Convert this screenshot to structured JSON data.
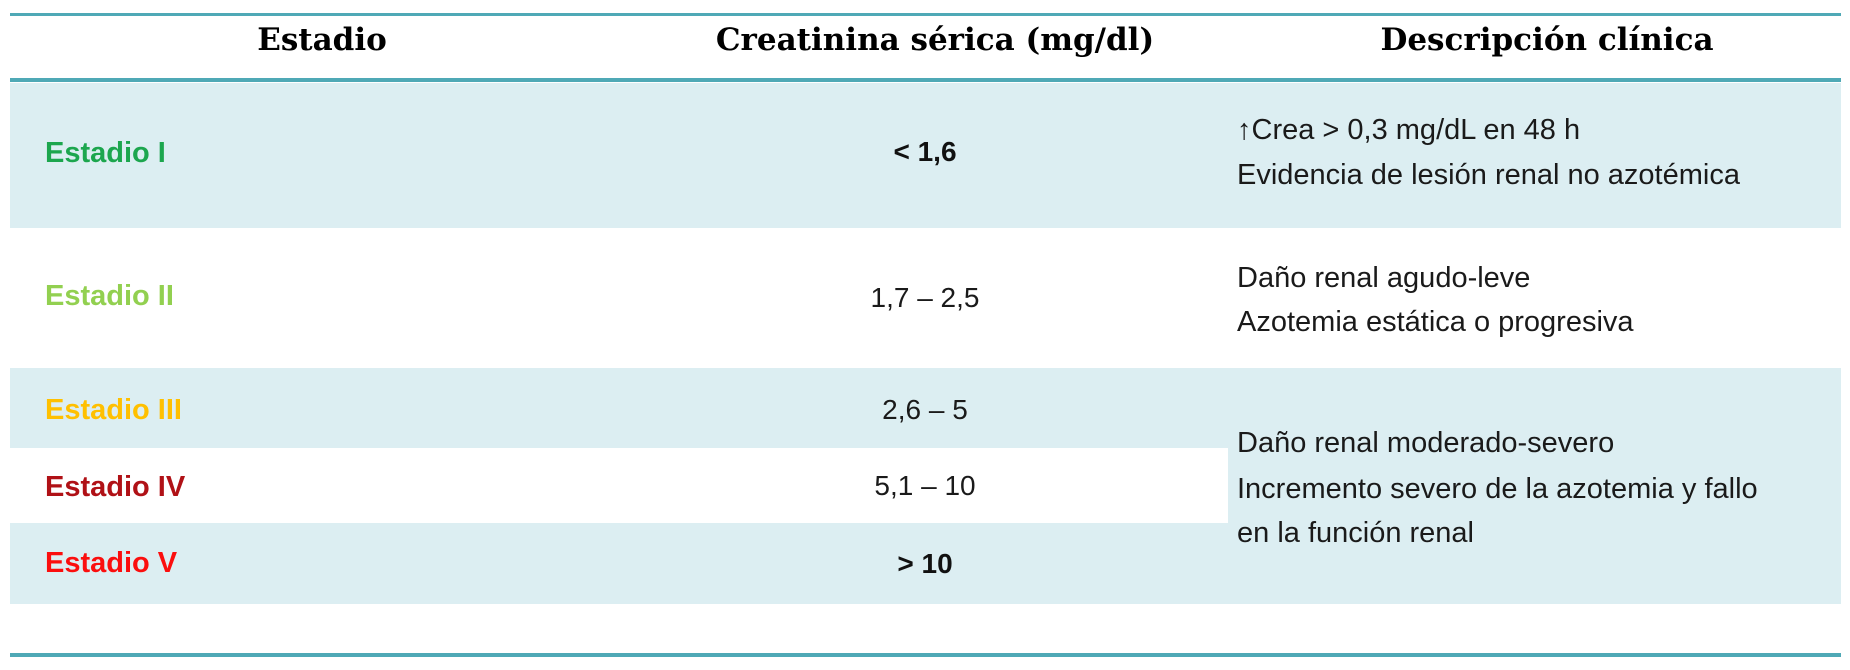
{
  "chart_data": {
    "type": "table",
    "title": "",
    "columns": [
      "Estadio",
      "Creatinina sérica (mg/dl)",
      "Descripción clínica"
    ],
    "rows": [
      {
        "stage": "Estadio I",
        "stage_color": "#1CA64E",
        "creatinine": "< 1,6",
        "creatinine_bold": true,
        "description": [
          "↑Crea > 0,3 mg/dL en 48 h",
          "Evidencia de lesión renal no azotémica"
        ]
      },
      {
        "stage": "Estadio II",
        "stage_color": "#92D050",
        "creatinine": "1,7 – 2,5",
        "creatinine_bold": false,
        "description": [
          "Daño renal agudo-leve",
          "Azotemia estática o progresiva"
        ]
      },
      {
        "stage": "Estadio III",
        "stage_color": "#FFC000",
        "creatinine": "2,6 – 5",
        "creatinine_bold": false
      },
      {
        "stage": "Estadio IV",
        "stage_color": "#B01116",
        "creatinine": "5,1 – 10",
        "creatinine_bold": false
      },
      {
        "stage": "Estadio V",
        "stage_color": "#FB0E0E",
        "creatinine": "> 10",
        "creatinine_bold": true
      }
    ],
    "merged_description": {
      "applies_to": [
        "Estadio III",
        "Estadio IV",
        "Estadio V"
      ],
      "lines": [
        "Daño renal moderado-severo",
        "Incremento severo de la azotemia y fallo",
        "en la función renal"
      ]
    },
    "layout": {
      "grid": "off",
      "striped_row_color": "#DCEEF2",
      "rule_color": "#4FA9B6"
    }
  },
  "colors": {
    "accent_teal_rule": "#4FA9B6",
    "row_band_blue": "#DCEEF2",
    "header_text": "#000000",
    "body_text": "#1A1A1A"
  }
}
